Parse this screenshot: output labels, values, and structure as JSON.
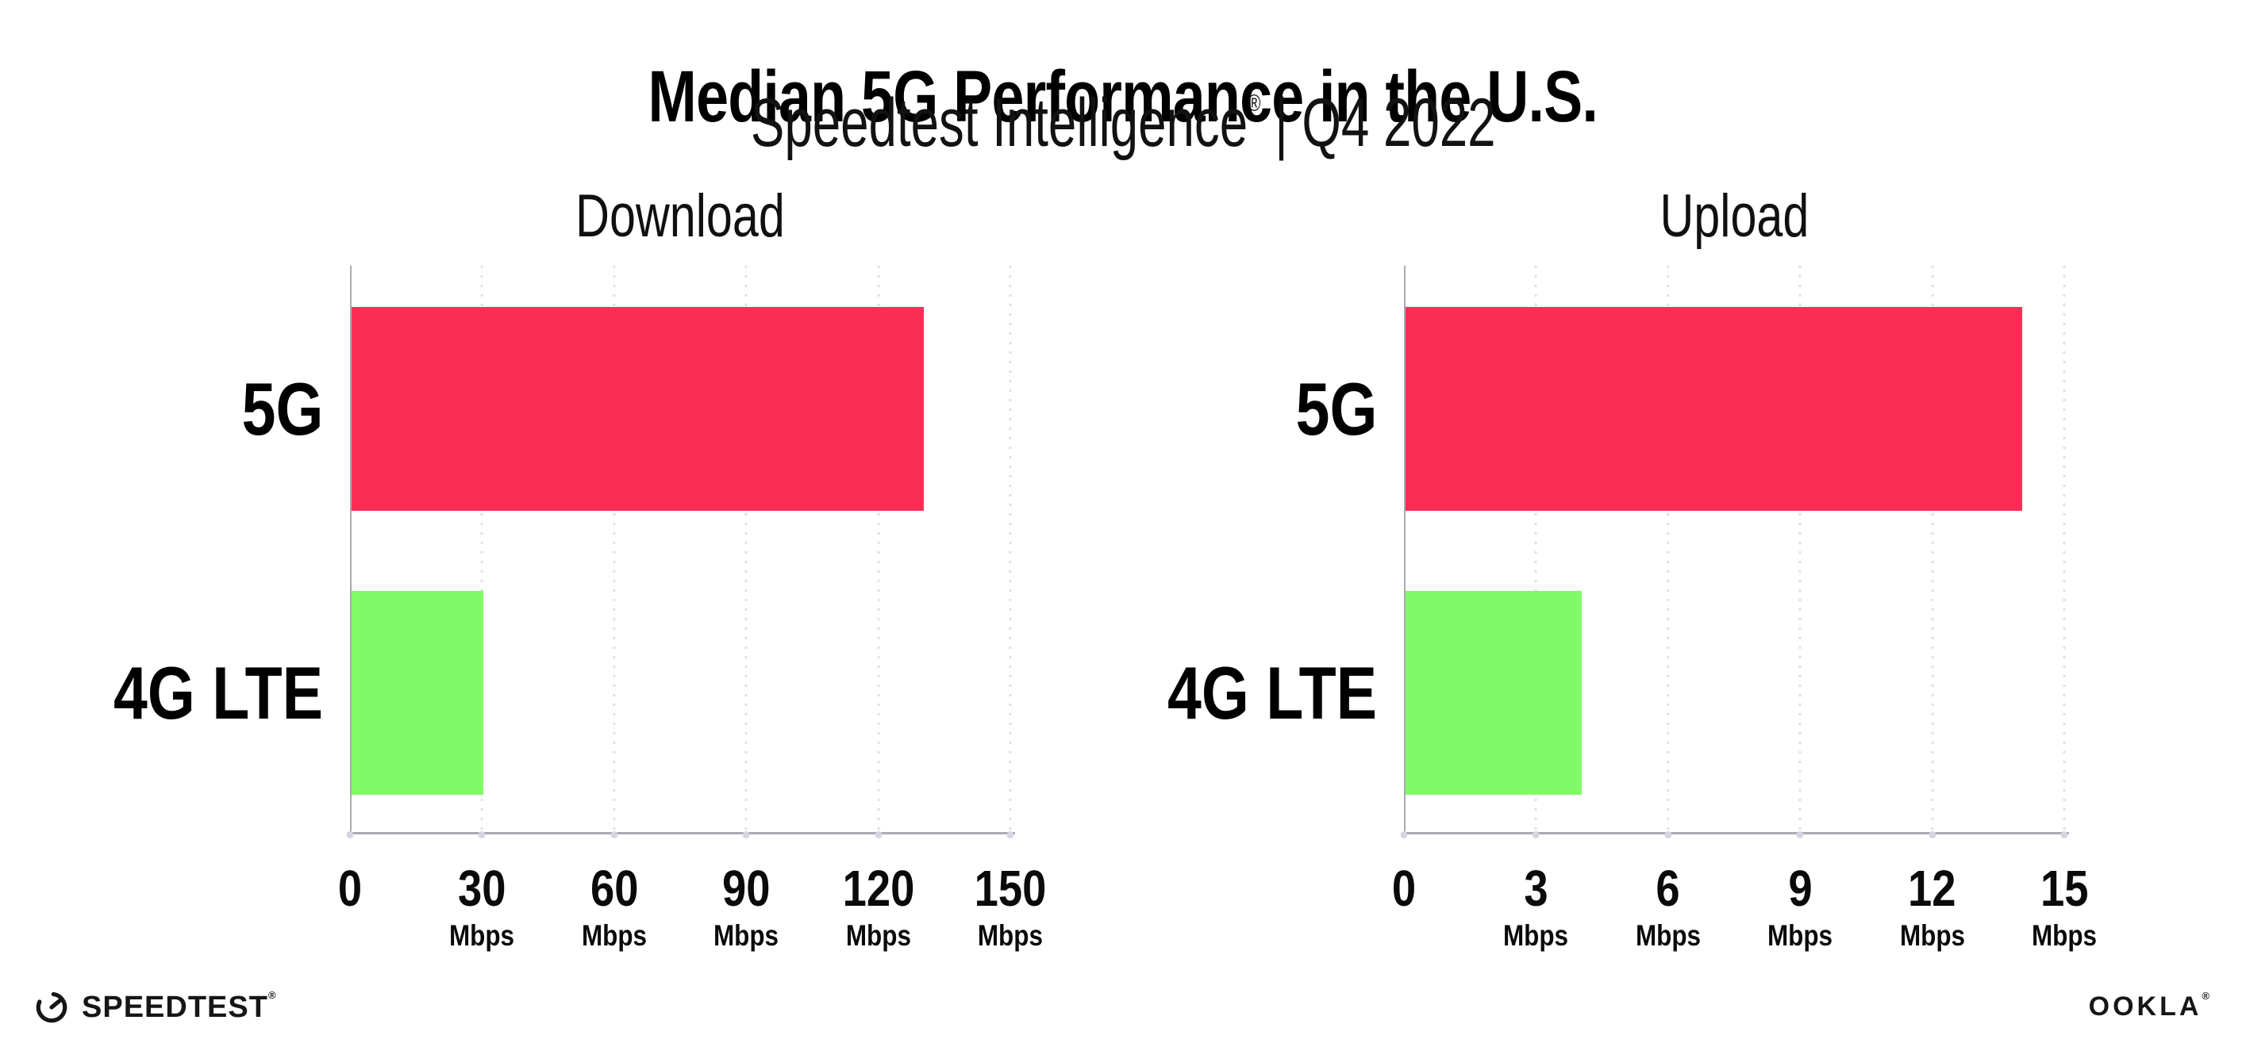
{
  "header": {
    "title": "Median 5G Performance in the U.S.",
    "subtitle_brand": "Speedtest Intelligence",
    "subtitle_reg": "®",
    "subtitle_rest": " | Q4 2022"
  },
  "chart_data": [
    {
      "type": "bar",
      "orientation": "horizontal",
      "title": "Download",
      "categories": [
        "5G",
        "4G LTE"
      ],
      "values": [
        130,
        30
      ],
      "value_unit": "Mbps",
      "xlim": [
        0,
        150
      ],
      "xticks": [
        0,
        30,
        60,
        90,
        120,
        150
      ],
      "tick_labels": [
        {
          "num": "0",
          "unit": ""
        },
        {
          "num": "30",
          "unit": "Mbps"
        },
        {
          "num": "60",
          "unit": "Mbps"
        },
        {
          "num": "90",
          "unit": "Mbps"
        },
        {
          "num": "120",
          "unit": "Mbps"
        },
        {
          "num": "150",
          "unit": "Mbps"
        }
      ],
      "bar_colors": [
        "#fc2d55",
        "#80fa66"
      ],
      "grid": "vertical-dotted",
      "legend": "none",
      "xlabel": "",
      "ylabel": ""
    },
    {
      "type": "bar",
      "orientation": "horizontal",
      "title": "Upload",
      "categories": [
        "5G",
        "4G LTE"
      ],
      "values": [
        14,
        4
      ],
      "value_unit": "Mbps",
      "xlim": [
        0,
        15
      ],
      "xticks": [
        0,
        3,
        6,
        9,
        12,
        15
      ],
      "tick_labels": [
        {
          "num": "0",
          "unit": ""
        },
        {
          "num": "3",
          "unit": "Mbps"
        },
        {
          "num": "6",
          "unit": "Mbps"
        },
        {
          "num": "9",
          "unit": "Mbps"
        },
        {
          "num": "12",
          "unit": "Mbps"
        },
        {
          "num": "15",
          "unit": "Mbps"
        }
      ],
      "bar_colors": [
        "#fc2d55",
        "#80fa66"
      ],
      "grid": "vertical-dotted",
      "legend": "none",
      "xlabel": "",
      "ylabel": ""
    }
  ],
  "colors": {
    "bar_5g": "#fc2d55",
    "bar_4g_lte": "#80fa66",
    "gridline": "#dfdfe9",
    "axis": "#a9a9b1"
  },
  "footer": {
    "speedtest_label": "SPEEDTEST",
    "speedtest_reg": "®",
    "speedtest_icon": "speedometer-gauge-icon",
    "ookla_label": "OOKLA",
    "ookla_reg": "®"
  }
}
